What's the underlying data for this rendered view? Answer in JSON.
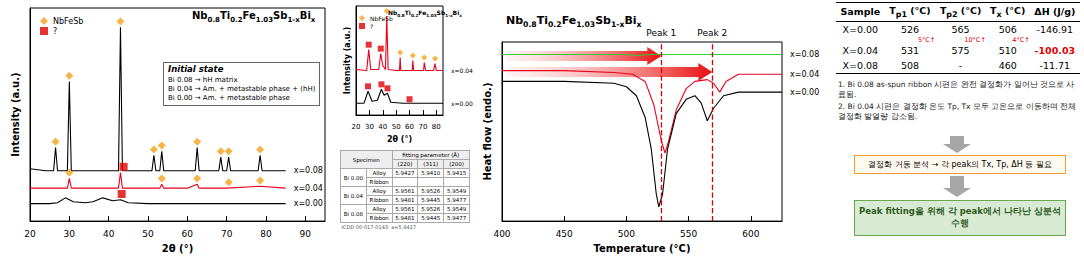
{
  "chart_data": [
    {
      "type": "line",
      "title": "Nb0.8Ti0.2Fe1.03Sb1-xBix",
      "x_label": "2θ (°)",
      "y_label": "Intensity (a.u.)",
      "xlim": [
        20,
        95
      ],
      "xticks": [
        20,
        30,
        40,
        50,
        60,
        70,
        80,
        90
      ],
      "ylim": [
        0,
        110
      ],
      "tick_labels": "x",
      "grid": false,
      "legend": "upper left",
      "annotation": {
        "title": "Initial state",
        "lines": [
          "Bi 0.08 → hH matrix",
          "Bi 0.04 → Am. + metastable phase + (hH)",
          "Bi 0.00 → Am. + metastable phase"
        ]
      },
      "series": [
        {
          "name": "x=0.08",
          "type": "line",
          "color": "#000000",
          "x": [
            20,
            24,
            26,
            26.5,
            27,
            29.5,
            30,
            30.5,
            35,
            42.5,
            43,
            43.5,
            48,
            51,
            51.5,
            52,
            53,
            53.5,
            54,
            58,
            62,
            62.5,
            63,
            68,
            68.5,
            69,
            70,
            70.5,
            71,
            75,
            78,
            78.5,
            79,
            85
          ],
          "values": [
            27,
            26,
            26,
            38,
            26,
            26,
            72,
            26,
            26,
            26,
            100,
            26,
            26,
            26,
            34,
            26,
            26,
            36,
            26,
            26,
            26,
            38,
            26,
            26,
            33,
            26,
            26,
            33,
            26,
            26,
            26,
            34,
            26,
            26
          ]
        },
        {
          "name": "x=0.04",
          "type": "line",
          "color": "#e8001c",
          "x": [
            20,
            25,
            29.5,
            30,
            30.5,
            35,
            42.5,
            43,
            43.5,
            50,
            53,
            53.5,
            54,
            60,
            62.5,
            63,
            70,
            78.5,
            85
          ],
          "values": [
            17,
            17,
            17,
            22,
            17,
            17,
            17,
            25,
            17,
            17,
            17,
            19,
            17,
            17,
            19,
            17,
            17,
            18,
            17
          ]
        },
        {
          "name": "x=0.00",
          "type": "line",
          "color": "#000000",
          "x": [
            20,
            25,
            27,
            29,
            31,
            34,
            36,
            38.5,
            41,
            43,
            45,
            50,
            60,
            70,
            80,
            85
          ],
          "values": [
            9,
            9,
            9.5,
            12,
            10,
            9.5,
            10,
            12,
            10.5,
            11,
            9.5,
            9,
            9,
            9,
            9,
            9
          ]
        },
        {
          "name": "NbFeSb",
          "type": "scatter",
          "marker": "diamond",
          "color": "#f5a31a",
          "x": [
            26.5,
            30,
            43,
            51.5,
            53.5,
            62.5,
            68.5,
            70.5,
            78.5,
            30,
            53.5,
            62.5,
            70.5,
            78.5
          ],
          "values": [
            41,
            75,
            103,
            37,
            39,
            41,
            36,
            36,
            37,
            25,
            22,
            22,
            20,
            21
          ]
        },
        {
          "name": "?",
          "type": "scatter",
          "marker": "square",
          "color": "#e00000",
          "x": [
            43.8,
            43.3
          ],
          "values": [
            28,
            14
          ]
        }
      ]
    },
    {
      "type": "line",
      "title": "Nb0.8Ti0.2Fe1.03Sb1-xBix",
      "x_label": "2θ (°)",
      "y_label": "Intensity (a.u.)",
      "xlim": [
        20,
        85
      ],
      "xticks": [
        20,
        30,
        40,
        50,
        60,
        70,
        80
      ],
      "ylim": [
        0,
        110
      ],
      "tick_labels": "x",
      "grid": false,
      "legend": "upper left",
      "series": [
        {
          "name": "x=0.04",
          "type": "line",
          "color": "#e8001c",
          "x": [
            20,
            28,
            29.5,
            31,
            37,
            38.5,
            40,
            42,
            43,
            44,
            50,
            52.5,
            53,
            53.5,
            60,
            62,
            62.5,
            63,
            68,
            70.5,
            71,
            72,
            78,
            79,
            80,
            85
          ],
          "values": [
            46,
            45,
            66,
            46,
            46,
            62,
            50,
            46,
            100,
            46,
            45,
            45,
            58,
            45,
            45,
            45,
            55,
            45,
            45,
            45,
            53,
            45,
            45,
            52,
            45,
            45
          ]
        },
        {
          "name": "x=0.00",
          "type": "line",
          "color": "#000000",
          "x": [
            20,
            26,
            29,
            32,
            36,
            39,
            41,
            43.5,
            46,
            55,
            60,
            65,
            75,
            85
          ],
          "values": [
            12,
            12,
            24,
            14,
            15,
            26,
            20,
            22,
            13,
            12,
            12,
            12,
            12,
            12
          ]
        },
        {
          "name": "NbFeSb",
          "type": "scatter",
          "marker": "diamond",
          "color": "#f5a31a",
          "x": [
            43,
            53,
            62.5,
            71,
            79
          ],
          "values": [
            105,
            63,
            60,
            58,
            57
          ]
        },
        {
          "name": "?",
          "type": "scatter",
          "marker": "square",
          "color": "#e00000",
          "x": [
            29.5,
            38.5,
            29,
            39,
            43.5,
            60
          ],
          "values": [
            71,
            67,
            29,
            31,
            27,
            16
          ]
        }
      ]
    },
    {
      "type": "line",
      "title": "Nb0.8Ti0.2Fe1.03Sb1-xBix",
      "x_label": "Temperature (°C)",
      "y_label": "Heat flow (endo.)",
      "xlim": [
        400,
        625
      ],
      "xticks": [
        400,
        450,
        500,
        550,
        600
      ],
      "ylim": [
        0,
        100
      ],
      "tick_labels": "x",
      "grid": false,
      "markers": [
        {
          "label": "Peak 1",
          "x": 528
        },
        {
          "label": "Peak 2",
          "x": 569
        }
      ],
      "series": [
        {
          "name": "x=0.08",
          "type": "line",
          "color": "#33cc33",
          "x": [
            400,
            450,
            500,
            508,
            520,
            550,
            600,
            625
          ],
          "values": [
            93,
            93,
            93,
            92.5,
            93,
            93,
            93,
            93
          ]
        },
        {
          "name": "x=0.04",
          "type": "line",
          "color": "#e8001c",
          "x": [
            400,
            450,
            490,
            505,
            515,
            522,
            528,
            531,
            534,
            540,
            548,
            555,
            565,
            570,
            575,
            580,
            590,
            600,
            625
          ],
          "values": [
            84,
            84,
            83,
            82,
            78,
            65,
            45,
            38,
            45,
            62,
            74,
            78,
            79,
            77,
            72,
            78,
            82,
            82,
            82
          ]
        },
        {
          "name": "x=0.00",
          "type": "line",
          "color": "#000000",
          "x": [
            400,
            450,
            490,
            500,
            508,
            515,
            520,
            524,
            526,
            529,
            533,
            540,
            548,
            555,
            560,
            565,
            570,
            578,
            590,
            600,
            625
          ],
          "values": [
            78,
            78,
            77,
            75,
            70,
            58,
            40,
            15,
            8,
            15,
            40,
            60,
            68,
            70,
            66,
            56,
            63,
            70,
            72,
            72,
            72
          ]
        }
      ]
    }
  ],
  "lattice_table": {
    "header": [
      "Specimen",
      "fitting parameter (Å)"
    ],
    "subheader": [
      "(220)",
      "(311)",
      "(200)"
    ],
    "groups": [
      {
        "specimen": "Bi 0.00",
        "rows": [
          {
            "form": "Alloy",
            "values": [
              "5.9427",
              "5.9410",
              "5.9415"
            ]
          },
          {
            "form": "Ribbon",
            "values": [
              null,
              null,
              null
            ]
          }
        ]
      },
      {
        "specimen": "Bi 0.04",
        "rows": [
          {
            "form": "Alloy",
            "values": [
              "5.9561",
              "5.9526",
              "5.9549"
            ]
          },
          {
            "form": "Ribbon",
            "values": [
              "5.9481",
              "5.9445",
              "5.9477"
            ]
          }
        ]
      },
      {
        "specimen": "Bi 0.08",
        "rows": [
          {
            "form": "Alloy",
            "values": [
              "5.9561",
              "5.9526",
              "5.9549"
            ]
          },
          {
            "form": "Ribbon",
            "values": [
              "5.9481",
              "5.9445",
              "5.9477"
            ]
          }
        ]
      }
    ],
    "footer": "ICDD 00-017-0143: a=5.9417"
  },
  "dsc_table": {
    "columns": [
      "Sample",
      "Tp1 (°C)",
      "Tp2 (°C)",
      "Tx (°C)",
      "ΔH (J/g)"
    ],
    "rows": [
      [
        "X=0.00",
        "526",
        "565",
        "506",
        "-146.91"
      ],
      [
        "X=0.04",
        "531",
        "575",
        "510",
        {
          "text": "-100.03",
          "color": "#e00000"
        }
      ],
      [
        "X=0.08",
        "508",
        "-",
        "460",
        "-11.71"
      ]
    ],
    "changes": [
      {
        "column": 1,
        "label": "5°C↑"
      },
      {
        "column": 2,
        "label": "10°C↑"
      },
      {
        "column": 3,
        "label": "4°C↑"
      }
    ]
  },
  "notes": [
    "1. Bi 0.08 as-spun ribbon 시편은 완전 결정화가 일어난 것으로 사료됨.",
    "2. Bi 0.04 시편은 결정화 온도 Tp, Tx 모두 고온으로 이동하며 전체 결정화 발열량 감소됨."
  ],
  "flow": [
    "결정화 거동 분석 → 각 peak의 Tx, Tp, ΔH 등 필요",
    "Peak fitting을 위해 각 peak에서 나타난 상분석 수행"
  ]
}
